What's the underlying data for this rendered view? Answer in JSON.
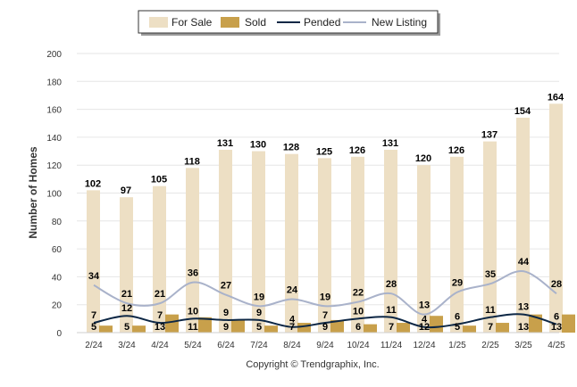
{
  "chart_data": {
    "type": "bar",
    "ylabel": "Number of Homes",
    "ylim": [
      0,
      200
    ],
    "yticks": [
      0,
      20,
      40,
      60,
      80,
      100,
      120,
      140,
      160,
      180,
      200
    ],
    "grid": true,
    "legend_position": "top-center",
    "categories": [
      "2/24",
      "3/24",
      "4/24",
      "5/24",
      "6/24",
      "7/24",
      "8/24",
      "9/24",
      "10/24",
      "11/24",
      "12/24",
      "1/25",
      "2/25",
      "3/25",
      "4/25"
    ],
    "series": [
      {
        "name": "For Sale",
        "kind": "bar",
        "color": "#eddfc4",
        "values": [
          102,
          97,
          105,
          118,
          131,
          130,
          128,
          125,
          126,
          131,
          120,
          126,
          137,
          154,
          164
        ]
      },
      {
        "name": "Sold",
        "kind": "bar",
        "color": "#c8a04b",
        "values": [
          5,
          5,
          13,
          11,
          9,
          5,
          7,
          9,
          6,
          7,
          12,
          5,
          7,
          13,
          13
        ]
      },
      {
        "name": "Pended",
        "kind": "line",
        "color": "#0d2745",
        "values": [
          7,
          12,
          7,
          10,
          9,
          9,
          4,
          7,
          10,
          11,
          4,
          6,
          11,
          13,
          6
        ]
      },
      {
        "name": "New Listing",
        "kind": "line",
        "color": "#a9b2ca",
        "values": [
          34,
          21,
          21,
          36,
          27,
          19,
          24,
          19,
          22,
          28,
          13,
          29,
          35,
          44,
          28
        ]
      }
    ]
  },
  "footer": {
    "copyright": "Copyright © Trendgraphix, Inc."
  }
}
